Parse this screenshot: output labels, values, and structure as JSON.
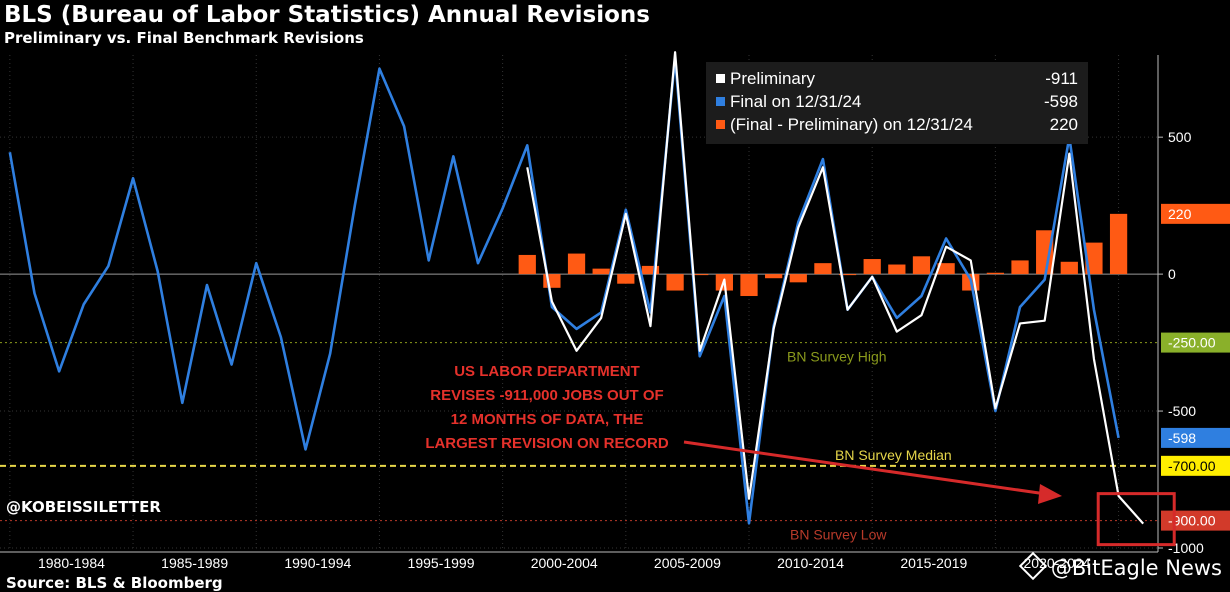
{
  "header": {
    "title": "BLS (Bureau of Labor Statistics) Annual Revisions",
    "subtitle": "Preliminary vs. Final Benchmark Revisions"
  },
  "legend": [
    {
      "label": "Preliminary",
      "value": "-911",
      "color": "#ffffff"
    },
    {
      "label": "Final on 12/31/24",
      "value": "-598",
      "color": "#2f7fe0"
    },
    {
      "label": "(Final - Preliminary) on 12/31/24",
      "value": "220",
      "color": "#ff5a14"
    }
  ],
  "annotation": {
    "lines": [
      "US LABOR DEPARTMENT",
      "REVISES -911,000 JOBS OUT OF",
      "12 MONTHS OF DATA, THE",
      "LARGEST REVISION ON RECORD"
    ],
    "color": "#e5312b"
  },
  "footer": {
    "handle": "@KOBEISSILETTER",
    "source": "Source: BLS & Bloomberg",
    "watermark": "@BitEagle News"
  },
  "chart_data": {
    "type": "line",
    "x_start_year": 1979,
    "x_range": [
      1978.6,
      2025.6
    ],
    "ylim": [
      -1000,
      800
    ],
    "grid": true,
    "legend_placement": "top-right",
    "year_groups": [
      "1980-1984",
      "1985-1989",
      "1990-1994",
      "1995-1999",
      "2000-2004",
      "2005-2009",
      "2010-2014",
      "2015-2019",
      "2020-2024"
    ],
    "y_ticks": [
      {
        "value": 500,
        "label": "500"
      },
      {
        "value": 0,
        "label": "0"
      },
      {
        "value": -500,
        "label": "-500"
      },
      {
        "value": -1000,
        "label": "-1000"
      }
    ],
    "reference_lines": [
      {
        "value": -250,
        "label": "BN Survey High",
        "tag": "-250.00",
        "color": "#8a9a1c",
        "tag_bg": "#8ab02a",
        "tag_fg": "#ffffff",
        "style": "dashed"
      },
      {
        "value": -700,
        "label": "BN Survey Median",
        "tag": "-700.00",
        "color": "#e6d64a",
        "tag_bg": "#ffee00",
        "tag_fg": "#000000",
        "style": "dashed"
      },
      {
        "value": -900,
        "label": "BN Survey Low",
        "tag": "-900.00",
        "color": "#b83a2a",
        "tag_bg": "#d23a2a",
        "tag_fg": "#ffffff",
        "style": "dashed"
      }
    ],
    "series": [
      {
        "name": "Final on 12/31/24",
        "color": "#2f7fe0",
        "start_year": 1979,
        "values": [
          445,
          -70,
          -355,
          -110,
          30,
          350,
          10,
          -470,
          -40,
          -330,
          40,
          -230,
          -640,
          -290,
          250,
          750,
          540,
          50,
          430,
          40,
          240,
          470,
          -120,
          -200,
          -140,
          235,
          -140,
          790,
          -300,
          -80,
          -910,
          -190,
          190,
          420,
          -130,
          -10,
          -160,
          -80,
          130,
          -20,
          -500,
          -120,
          -20,
          500,
          -130,
          -598
        ],
        "last_label": "-598",
        "last_label_bg": "#2f7fe0"
      },
      {
        "name": "Preliminary",
        "color": "#ffffff",
        "start_year": 2000,
        "values": [
          390,
          -100,
          -280,
          -160,
          220,
          -190,
          810,
          -280,
          -20,
          -820,
          -200,
          170,
          390,
          -130,
          -10,
          -210,
          -150,
          100,
          50,
          -490,
          -180,
          -170,
          440,
          -310,
          -810,
          -911
        ],
        "last_label": "-911"
      },
      {
        "name": "(Final - Preliminary) on 12/31/24",
        "color": "#ff5a14",
        "type": "bar",
        "start_year": 2000,
        "values": [
          70,
          -50,
          75,
          20,
          -35,
          30,
          -60,
          0,
          -60,
          -80,
          -15,
          -30,
          40,
          0,
          55,
          35,
          65,
          40,
          -60,
          5,
          50,
          160,
          45,
          115,
          220
        ],
        "last_label": "220",
        "last_label_bg": "#ff5a14"
      }
    ],
    "highlight": {
      "label": "box around -911 point",
      "color": "#d62a2a"
    }
  }
}
